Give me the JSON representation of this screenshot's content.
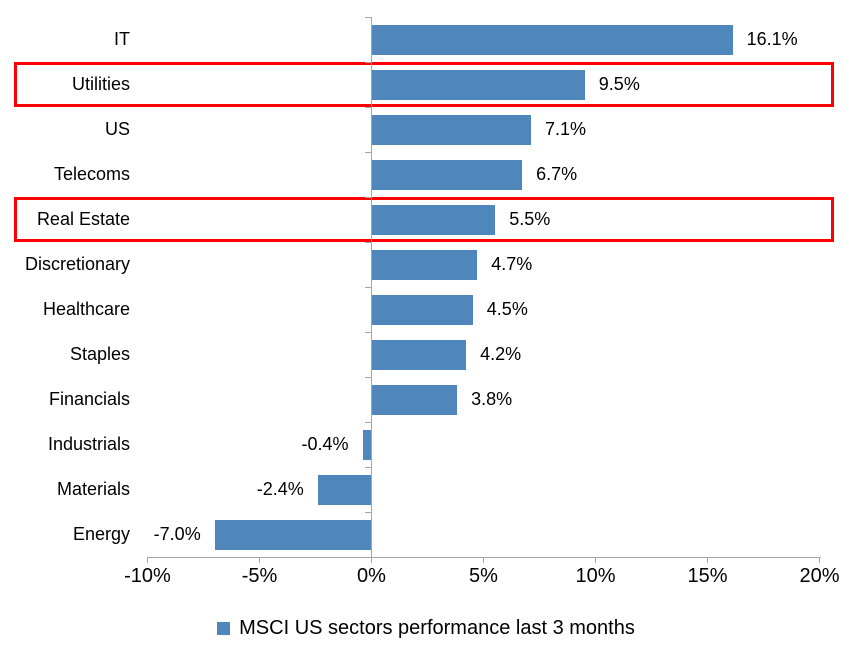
{
  "chart_data": {
    "type": "bar",
    "orientation": "horizontal",
    "title": "",
    "categories": [
      "IT",
      "Utilities",
      "US",
      "Telecoms",
      "Real Estate",
      "Discretionary",
      "Healthcare",
      "Staples",
      "Financials",
      "Industrials",
      "Materials",
      "Energy"
    ],
    "values": [
      16.1,
      9.5,
      7.1,
      6.7,
      5.5,
      4.7,
      4.5,
      4.2,
      3.8,
      -0.4,
      -2.4,
      -7.0
    ],
    "value_labels": [
      "16.1%",
      "9.5%",
      "7.1%",
      "6.7%",
      "5.5%",
      "4.7%",
      "4.5%",
      "4.2%",
      "3.8%",
      "-0.4%",
      "-2.4%",
      "-7.0%"
    ],
    "highlighted_categories": [
      "Utilities",
      "Real Estate"
    ],
    "x_ticks": [
      {
        "value": -10,
        "label": "-10%"
      },
      {
        "value": -5,
        "label": "-5%"
      },
      {
        "value": 0,
        "label": "0%"
      },
      {
        "value": 5,
        "label": "5%"
      },
      {
        "value": 10,
        "label": "10%"
      },
      {
        "value": 15,
        "label": "15%"
      },
      {
        "value": 20,
        "label": "20%"
      }
    ],
    "xlim": [
      -10,
      20
    ],
    "grid": false,
    "legend_position": "bottom-center",
    "legend": [
      {
        "label": "MSCI US sectors performance last 3 months",
        "color": "#4F86BC"
      }
    ],
    "colors": {
      "bar": "#4F86BC",
      "highlight_border": "#FF0000",
      "axis": "#A6A6A6",
      "text": "#000000",
      "background": "#FFFFFF"
    }
  }
}
